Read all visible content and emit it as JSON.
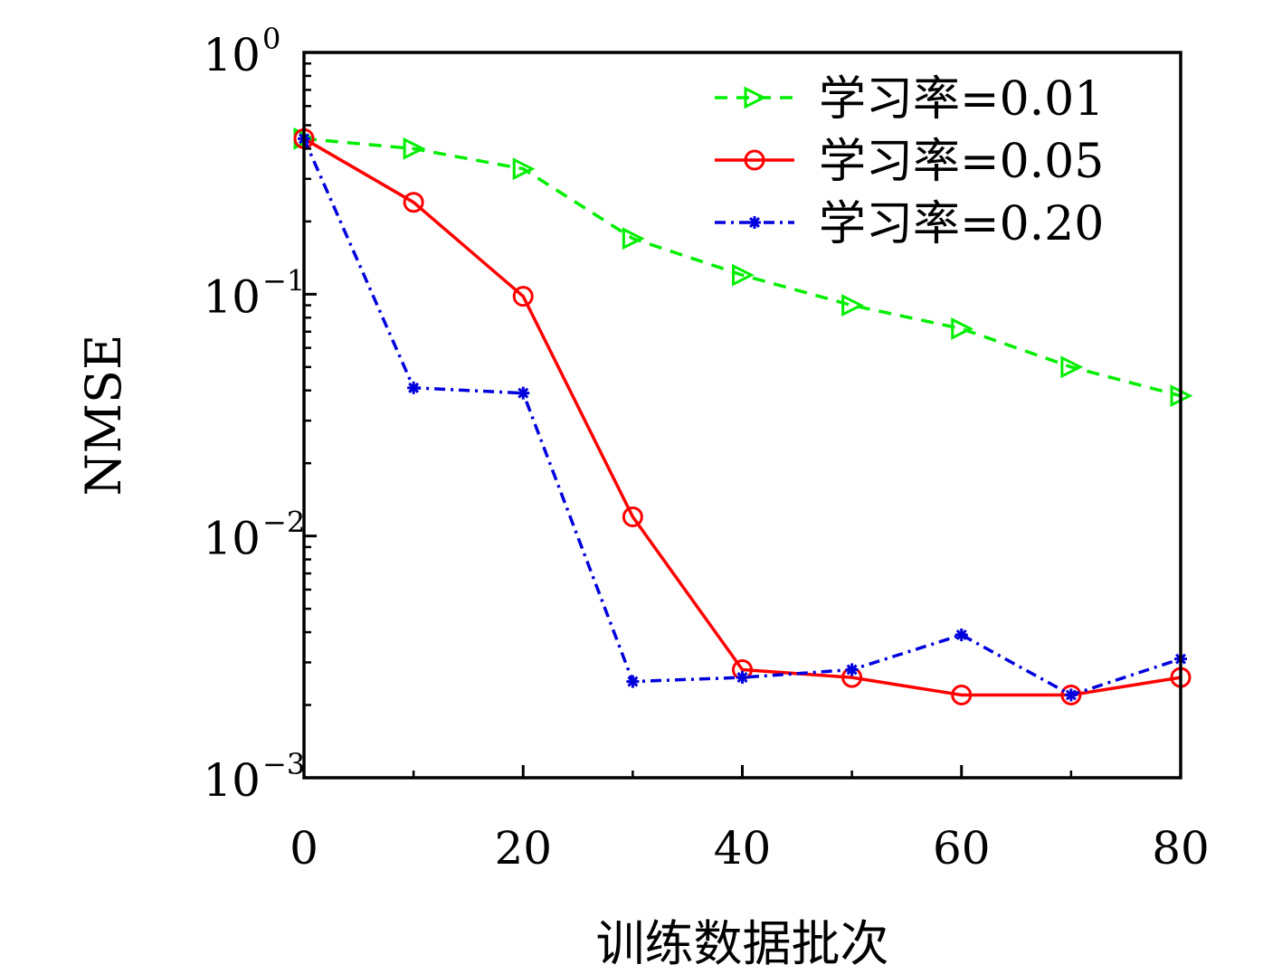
{
  "chart_data": {
    "type": "line",
    "title": "",
    "xlabel": "训练数据批次",
    "ylabel": "NMSE",
    "xlim": [
      0,
      80
    ],
    "ylim": [
      0.001,
      1
    ],
    "yscale": "log",
    "grid": false,
    "legend_position": "top-right",
    "x_ticks": [
      0,
      20,
      40,
      60,
      80
    ],
    "x_tick_labels": [
      "0",
      "20",
      "40",
      "60",
      "80"
    ],
    "y_ticks": [
      1,
      0.1,
      0.01,
      0.001
    ],
    "y_tick_labels": [
      {
        "base": "10",
        "exp": "0"
      },
      {
        "base": "10",
        "exp": "−1"
      },
      {
        "base": "10",
        "exp": "−2"
      },
      {
        "base": "10",
        "exp": "−3"
      }
    ],
    "x": [
      0,
      10,
      20,
      30,
      40,
      50,
      60,
      70,
      80
    ],
    "series": [
      {
        "name": "学习率=0.01",
        "color": "#00ee00",
        "line_style": "dashed",
        "marker": "triangle-right",
        "values": [
          0.44,
          0.4,
          0.33,
          0.17,
          0.12,
          0.09,
          0.072,
          0.05,
          0.038
        ]
      },
      {
        "name": "学习率=0.05",
        "color": "#ff0000",
        "line_style": "solid",
        "marker": "circle",
        "values": [
          0.44,
          0.24,
          0.098,
          0.012,
          0.0028,
          0.0026,
          0.0022,
          0.0022,
          0.0026
        ]
      },
      {
        "name": "学习率=0.20",
        "color": "#0000dd",
        "line_style": "dashdot",
        "marker": "asterisk",
        "values": [
          0.44,
          0.041,
          0.039,
          0.0025,
          0.0026,
          0.0028,
          0.0039,
          0.0022,
          0.0031
        ]
      }
    ]
  }
}
